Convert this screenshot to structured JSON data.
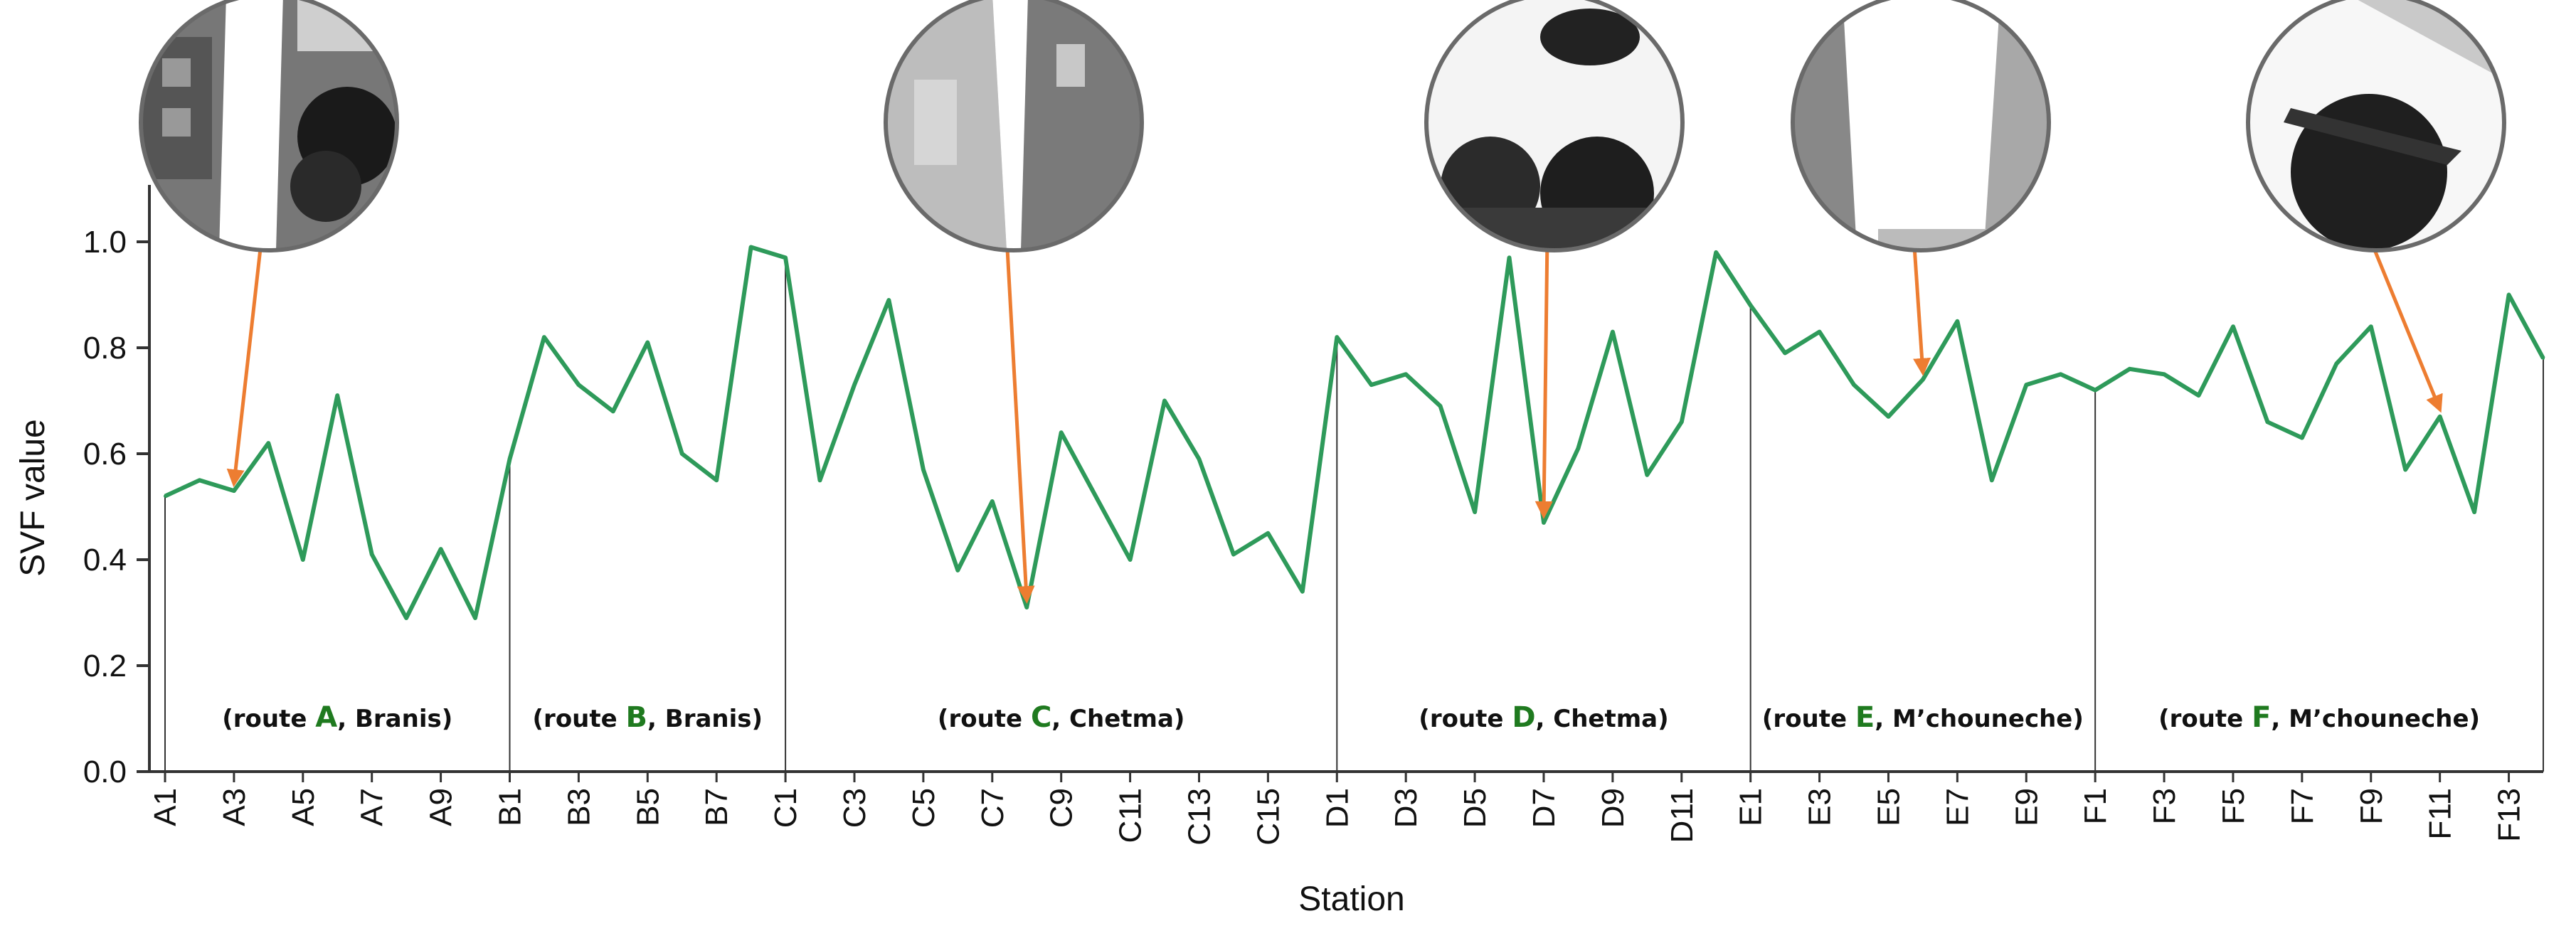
{
  "chart_data": {
    "type": "line",
    "title": "",
    "xlabel": "Station",
    "ylabel": "SVF value",
    "ylim": [
      0,
      1.1
    ],
    "yticks": [
      "0.0",
      "0.2",
      "0.4",
      "0.6",
      "0.8",
      "1.0"
    ],
    "grid": false,
    "series": [
      {
        "name": "SVF",
        "color": "#2e9a5a",
        "values": [
          0.52,
          0.55,
          0.53,
          0.62,
          0.4,
          0.71,
          0.41,
          0.29,
          0.42,
          0.29,
          0.59,
          0.82,
          0.73,
          0.68,
          0.81,
          0.6,
          0.55,
          0.99,
          0.97,
          0.55,
          0.73,
          0.89,
          0.57,
          0.38,
          0.51,
          0.31,
          0.64,
          0.52,
          0.4,
          0.7,
          0.59,
          0.41,
          0.45,
          0.34,
          0.82,
          0.73,
          0.75,
          0.69,
          0.49,
          0.97,
          0.47,
          0.61,
          0.83,
          0.56,
          0.66,
          0.98,
          0.88,
          0.79,
          0.83,
          0.73,
          0.67,
          0.74,
          0.85,
          0.55,
          0.73,
          0.75,
          0.72,
          0.76,
          0.75,
          0.71,
          0.84,
          0.66,
          0.63,
          0.77,
          0.84,
          0.57,
          0.67,
          0.49,
          0.9,
          0.78
        ]
      }
    ],
    "xtick_labels": [
      {
        "index": 0,
        "label": "A1"
      },
      {
        "index": 2,
        "label": "A3"
      },
      {
        "index": 4,
        "label": "A5"
      },
      {
        "index": 6,
        "label": "A7"
      },
      {
        "index": 8,
        "label": "A9"
      },
      {
        "index": 10,
        "label": "B1"
      },
      {
        "index": 12,
        "label": "B3"
      },
      {
        "index": 14,
        "label": "B5"
      },
      {
        "index": 16,
        "label": "B7"
      },
      {
        "index": 18,
        "label": "C1"
      },
      {
        "index": 20,
        "label": "C3"
      },
      {
        "index": 22,
        "label": "C5"
      },
      {
        "index": 24,
        "label": "C7"
      },
      {
        "index": 26,
        "label": "C9"
      },
      {
        "index": 28,
        "label": "C11"
      },
      {
        "index": 30,
        "label": "C13"
      },
      {
        "index": 32,
        "label": "C15"
      },
      {
        "index": 34,
        "label": "D1"
      },
      {
        "index": 36,
        "label": "D3"
      },
      {
        "index": 38,
        "label": "D5"
      },
      {
        "index": 40,
        "label": "D7"
      },
      {
        "index": 42,
        "label": "D9"
      },
      {
        "index": 44,
        "label": "D11"
      },
      {
        "index": 46,
        "label": "E1"
      },
      {
        "index": 48,
        "label": "E3"
      },
      {
        "index": 50,
        "label": "E5"
      },
      {
        "index": 52,
        "label": "E7"
      },
      {
        "index": 54,
        "label": "E9"
      },
      {
        "index": 56,
        "label": "F1"
      },
      {
        "index": 58,
        "label": "F3"
      },
      {
        "index": 60,
        "label": "F5"
      },
      {
        "index": 62,
        "label": "F7"
      },
      {
        "index": 64,
        "label": "F9"
      },
      {
        "index": 66,
        "label": "F11"
      },
      {
        "index": 68,
        "label": "F13"
      }
    ],
    "route_dividers": [
      10,
      18,
      34,
      46,
      56
    ],
    "routes": [
      {
        "prefix": "(route ",
        "letter": "A",
        "suffix": ", Branis)",
        "start": 0,
        "end": 10
      },
      {
        "prefix": "(route ",
        "letter": "B",
        "suffix": ", Branis)",
        "start": 10,
        "end": 18
      },
      {
        "prefix": "(route ",
        "letter": "C",
        "suffix": ", Chetma)",
        "start": 18,
        "end": 34
      },
      {
        "prefix": "(route ",
        "letter": "D",
        "suffix": ", Chetma)",
        "start": 34,
        "end": 46
      },
      {
        "prefix": "(route ",
        "letter": "E",
        "suffix": ", M’chouneche)",
        "start": 46,
        "end": 56
      },
      {
        "prefix": "(route ",
        "letter": "F",
        "suffix": ", M’chouneche)",
        "start": 56,
        "end": 69
      }
    ],
    "annotations": [
      {
        "name": "fisheye-photo-route-a",
        "target_index": 2,
        "style": "light-left"
      },
      {
        "name": "fisheye-photo-route-c",
        "target_index": 25,
        "style": "gray-buildings"
      },
      {
        "name": "fisheye-photo-route-d",
        "target_index": 40,
        "style": "palms-bright"
      },
      {
        "name": "fisheye-photo-route-e",
        "target_index": 51,
        "style": "white-gap"
      },
      {
        "name": "fisheye-photo-route-f",
        "target_index": 66,
        "style": "palm-canopy"
      }
    ],
    "arrow_color": "#ed7d31"
  }
}
